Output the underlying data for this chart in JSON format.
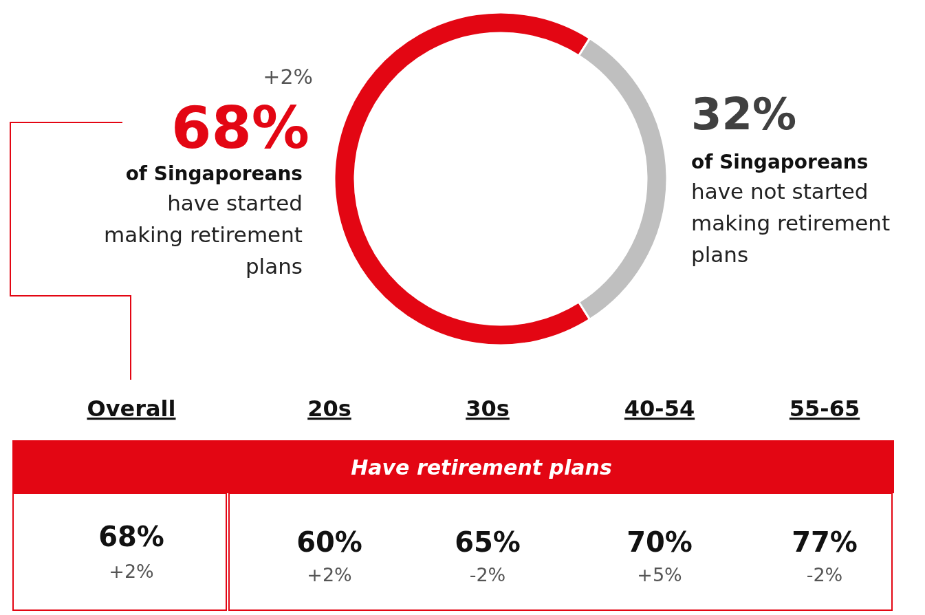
{
  "chart_data": [
    {
      "type": "donut",
      "categories": [
        null,
        null
      ],
      "values": [
        68,
        32
      ],
      "colors": [
        "#e30613",
        "#bfbfbf"
      ],
      "value_labels": [
        "68%",
        "32%"
      ],
      "annotations": [
        "+2%",
        "of Singaporeans",
        "have started making retirement plans",
        "of Singaporeans",
        "have not started making retirement plans"
      ]
    },
    {
      "type": "other",
      "title": "Have retirement plans",
      "categories": [
        "Overall",
        "20s",
        "30s",
        "40-54",
        "55-65"
      ],
      "series": [
        {
          "values": [
            68,
            60,
            65,
            70,
            77
          ],
          "value_labels": [
            "68%",
            "60%",
            "65%",
            "70%",
            "77%"
          ]
        },
        {
          "values": [
            2,
            2,
            -2,
            5,
            -2
          ],
          "value_labels": [
            "+2%",
            "+2%",
            "-2%",
            "+5%",
            "-2%"
          ]
        }
      ]
    }
  ]
}
